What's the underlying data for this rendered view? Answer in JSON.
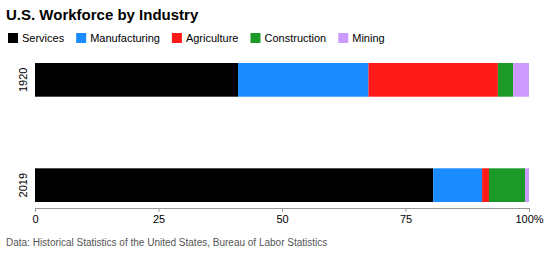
{
  "chart_data": {
    "type": "bar",
    "title": "U.S. Workforce by Industry",
    "source": "Data: Historical Statistics of the United States, Bureau of Labor Statistics",
    "orientation": "horizontal",
    "stacked": true,
    "legend": "top",
    "grid": false,
    "categories": [
      "1920",
      "2019"
    ],
    "series": [
      {
        "name": "Services",
        "color": "#000000",
        "values": [
          41.1,
          80.6
        ]
      },
      {
        "name": "Manufacturing",
        "color": "#1a8cff",
        "values": [
          26.4,
          9.9
        ]
      },
      {
        "name": "Agriculture",
        "color": "#ff1a1a",
        "values": [
          26.2,
          1.4
        ]
      },
      {
        "name": "Construction",
        "color": "#1b9a2a",
        "values": [
          3.1,
          7.3
        ]
      },
      {
        "name": "Mining",
        "color": "#cc99ff",
        "values": [
          3.2,
          0.8
        ]
      }
    ],
    "xlim": [
      0,
      100
    ],
    "xticks": [
      0,
      25,
      50,
      75,
      {
        "value": 100,
        "label": "100%"
      }
    ]
  }
}
